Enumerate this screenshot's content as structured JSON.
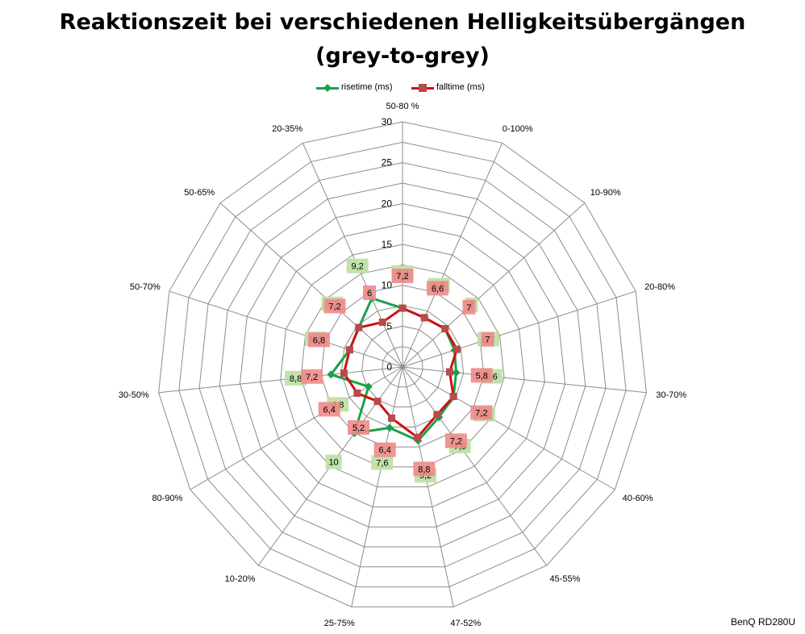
{
  "title_line1": "Reaktionszeit bei verschiedenen Helligkeitsübergängen",
  "title_line2": "(grey-to-grey)",
  "brand": "BenQ RD280U",
  "chart_data": {
    "type": "radar",
    "title": "Reaktionszeit bei verschiedenen Helligkeitsübergängen (grey-to-grey)",
    "categories": [
      "50-80 %",
      "0-100%",
      "10-90%",
      "20-80%",
      "30-70%",
      "40-60%",
      "45-55%",
      "47-52%",
      "25-75%",
      "10-20%",
      "80-90%",
      "30-50%",
      "50-70%",
      "50-65%",
      "20-35%"
    ],
    "r_range": [
      0,
      30
    ],
    "r_ticks": [
      0,
      5,
      10,
      15,
      20,
      25,
      30
    ],
    "legend_position": "top",
    "grid": true,
    "series": [
      {
        "name": "risetime (ms)",
        "color": "#1aa14a",
        "label_bg": "#bfe0a6",
        "marker": "diamond",
        "values": [
          7.2,
          6.6,
          7,
          6.7,
          6.6,
          7.2,
          7.6,
          9.2,
          7.6,
          10,
          4.8,
          8.8,
          6.8,
          7.2,
          9.2
        ],
        "labels": [
          "7,2",
          "6,6",
          "7",
          "6,7",
          "6,6",
          "7,2",
          "7,6",
          "9,2",
          "7,6",
          "10",
          "4,8",
          "8,8",
          "6,8",
          "7,2",
          "9,2"
        ]
      },
      {
        "name": "falltime (ms)",
        "color": "#cc1111",
        "label_bg": "#f08a8a",
        "marker": "square",
        "values": [
          7.2,
          6.6,
          7,
          7,
          5.8,
          7.2,
          7.2,
          8.8,
          6.4,
          5.2,
          6.4,
          7.2,
          6.8,
          7.2,
          6
        ],
        "labels": [
          "7,2",
          "6,6",
          "7",
          "7",
          "5,8",
          "7,2",
          "7,2",
          "8,8",
          "6,4",
          "5,2",
          "6,4",
          "7,2",
          "6,8",
          "7,2",
          "6"
        ]
      }
    ]
  }
}
